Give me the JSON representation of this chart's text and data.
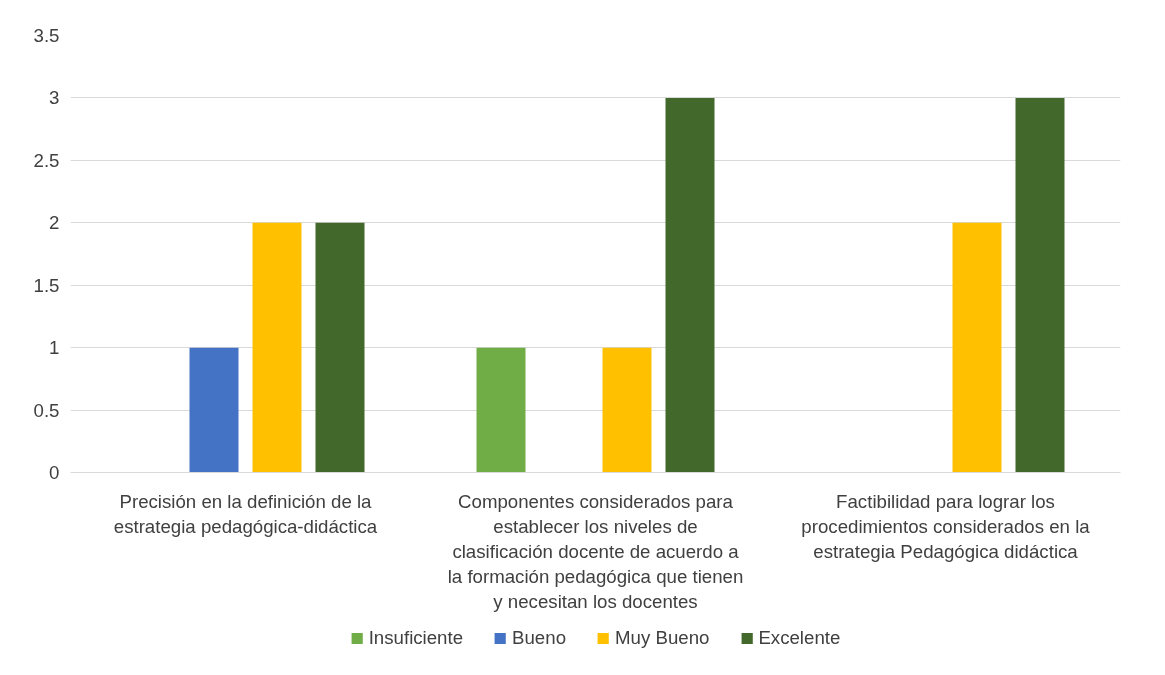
{
  "chart_data": {
    "type": "bar",
    "categories": [
      "Precisión en la definición de la estrategia pedagógica-didáctica",
      "Componentes considerados para establecer los niveles de clasificación docente de acuerdo a la formación pedagógica que tienen y necesitan los docentes",
      "Factibilidad para lograr los procedimientos considerados en la estrategia Pedagógica didáctica"
    ],
    "series": [
      {
        "name": "Insuficiente",
        "color": "#70ad47",
        "values": [
          0,
          1,
          0
        ]
      },
      {
        "name": "Bueno",
        "color": "#4472c4",
        "values": [
          1,
          0,
          0
        ]
      },
      {
        "name": "Muy Bueno",
        "color": "#ffc000",
        "values": [
          2,
          1,
          2
        ]
      },
      {
        "name": "Excelente",
        "color": "#43682b",
        "values": [
          2,
          3,
          3
        ]
      }
    ],
    "ylim": [
      0,
      3.5
    ],
    "yticks": [
      0,
      0.5,
      1,
      1.5,
      2,
      2.5,
      3,
      3.5
    ],
    "grid": "y",
    "legend": "bottom"
  }
}
